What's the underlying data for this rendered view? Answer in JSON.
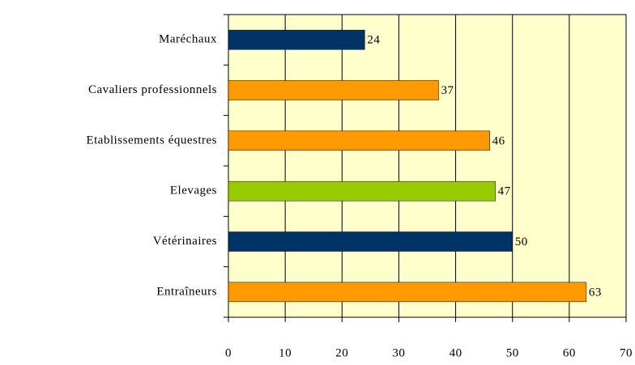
{
  "chart_data": {
    "type": "bar",
    "orientation": "horizontal",
    "categories": [
      "Maréchaux",
      "Cavaliers professionnels",
      "Etablissements équestres",
      "Elevages",
      "Vétérinaires",
      "Entraîneurs"
    ],
    "values": [
      24,
      37,
      46,
      47,
      50,
      63
    ],
    "colors": [
      "#003366",
      "#ff9900",
      "#ff9900",
      "#99cc00",
      "#003366",
      "#ff9900"
    ],
    "xlim": [
      0,
      70
    ],
    "xticks": [
      0,
      10,
      20,
      30,
      40,
      50,
      60,
      70
    ],
    "grid": true
  }
}
